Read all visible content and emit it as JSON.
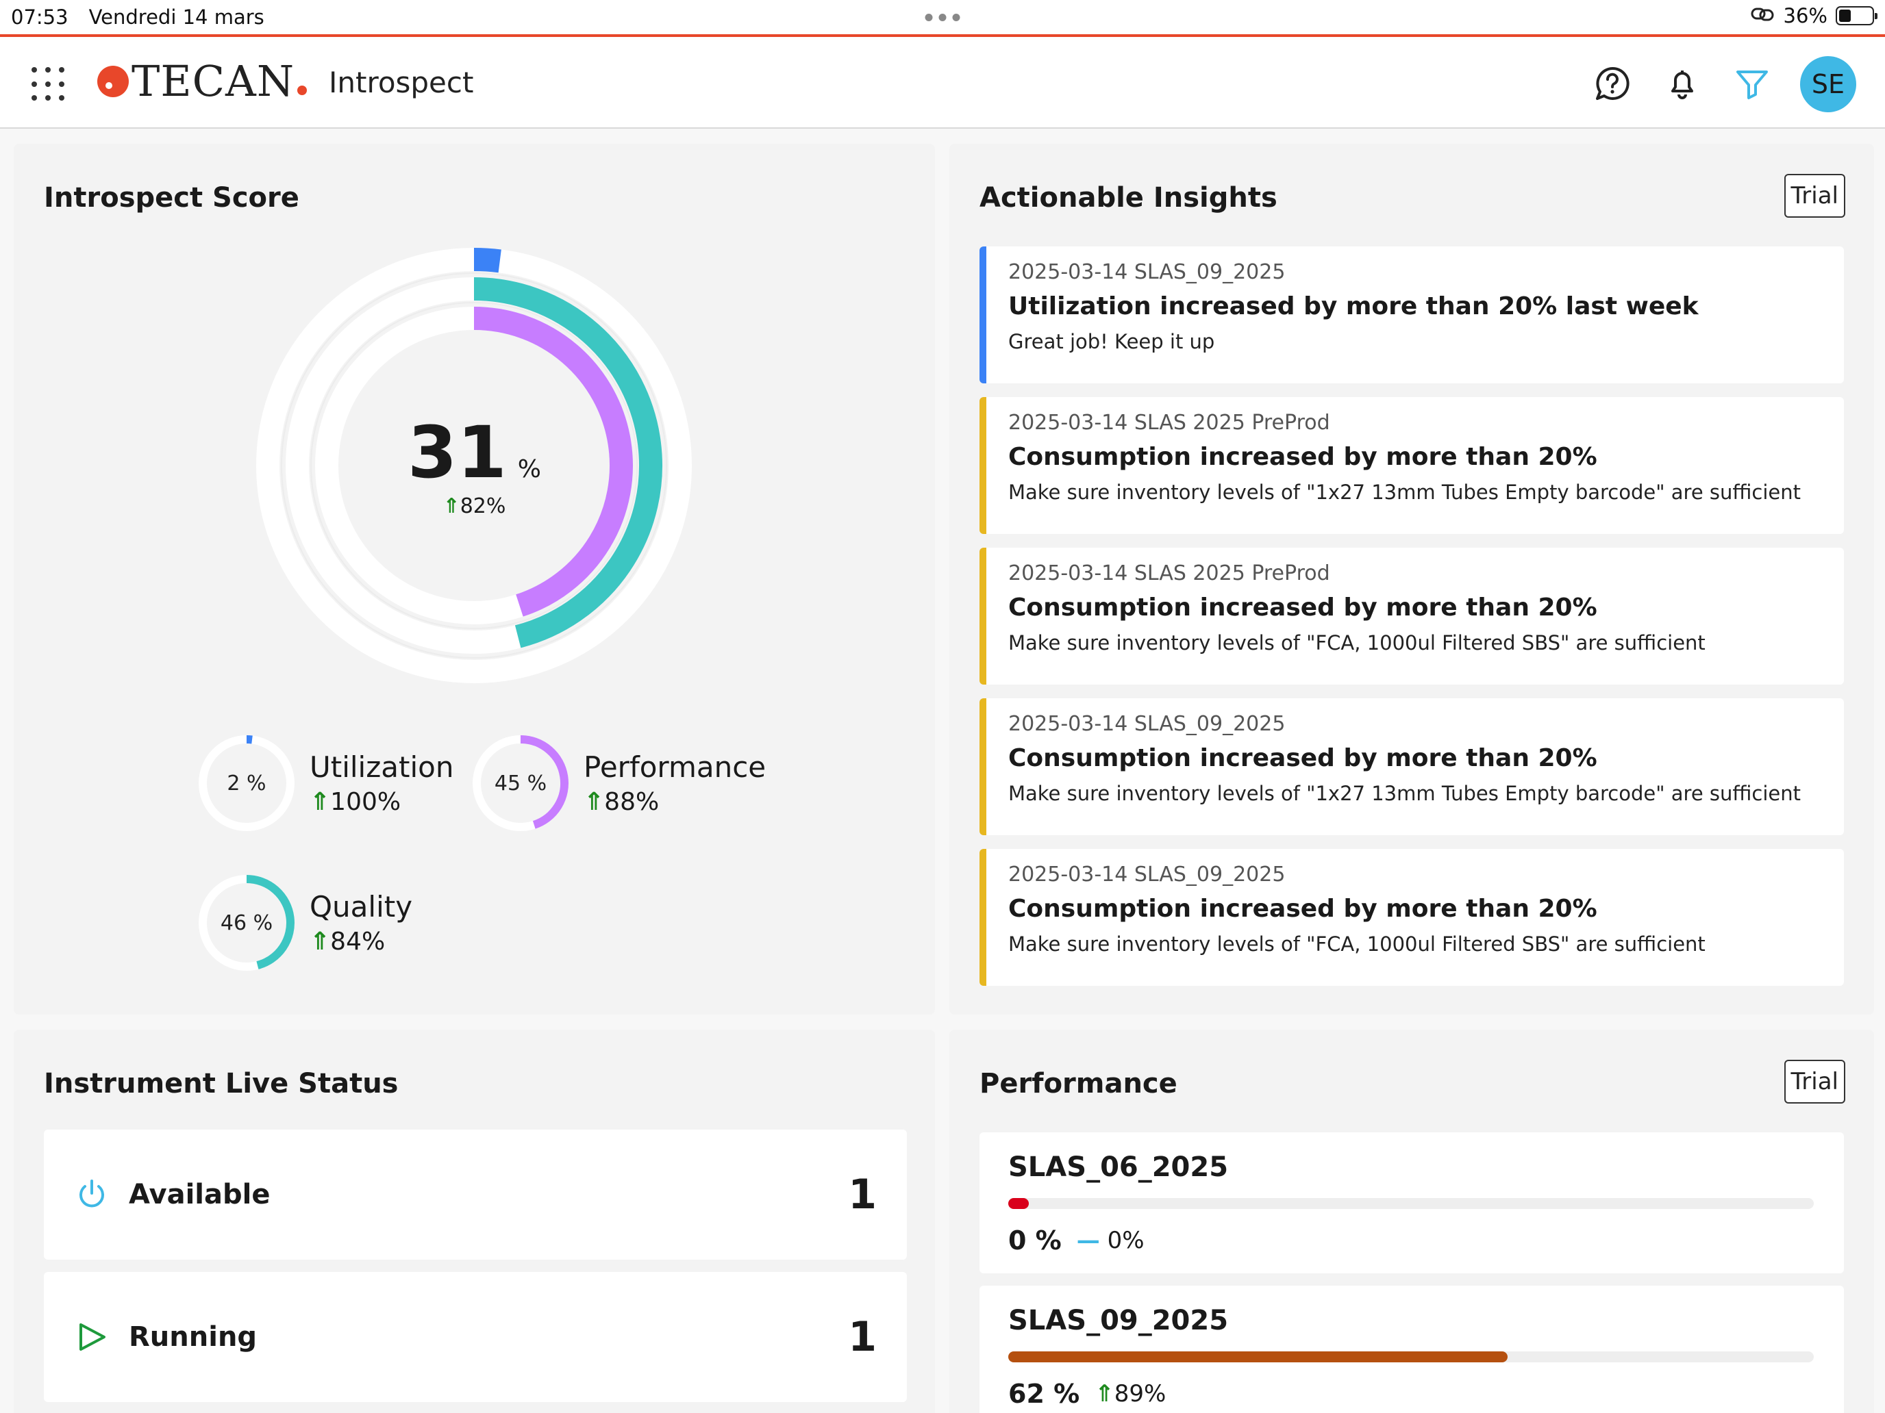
{
  "status_bar": {
    "time": "07:53",
    "date": "Vendredi 14 mars",
    "battery": "36%",
    "battery_level": 0.36
  },
  "header": {
    "brand": "TECAN",
    "product": "Introspect",
    "avatar_initials": "SE",
    "icons": [
      "apps-grid-icon",
      "help-chat-icon",
      "bell-icon",
      "filter-icon"
    ]
  },
  "score_card": {
    "title": "Introspect Score",
    "score": "31",
    "score_unit": "%",
    "score_change": "82%",
    "rings": {
      "utilization": 0.02,
      "quality": 0.46,
      "performance": 0.45
    },
    "colors": {
      "utilization": "#3b82f6",
      "quality": "#3cc6c2",
      "performance": "#c77dff"
    },
    "metrics": [
      {
        "key": "utilization",
        "value": "2 %",
        "label": "Utilization",
        "change": "100%"
      },
      {
        "key": "performance",
        "value": "45 %",
        "label": "Performance",
        "change": "88%"
      },
      {
        "key": "quality",
        "value": "46 %",
        "label": "Quality",
        "change": "84%"
      }
    ]
  },
  "insights": {
    "title": "Actionable Insights",
    "badge": "Trial",
    "items": [
      {
        "meta": "2025-03-14 SLAS_09_2025",
        "title": "Utilization increased by more than 20% last week",
        "desc": "Great job! Keep it up",
        "color": "#3b82f6"
      },
      {
        "meta": "2025-03-14 SLAS 2025 PreProd",
        "title": "Consumption increased by more than 20%",
        "desc": "Make sure inventory levels of \"1x27 13mm Tubes Empty barcode\" are sufficient",
        "color": "#e7b720"
      },
      {
        "meta": "2025-03-14 SLAS 2025 PreProd",
        "title": "Consumption increased by more than 20%",
        "desc": "Make sure inventory levels of \"FCA, 1000ul Filtered SBS\" are sufficient",
        "color": "#e7b720"
      },
      {
        "meta": "2025-03-14 SLAS_09_2025",
        "title": "Consumption increased by more than 20%",
        "desc": "Make sure inventory levels of \"1x27 13mm Tubes Empty barcode\" are sufficient",
        "color": "#e7b720"
      },
      {
        "meta": "2025-03-14 SLAS_09_2025",
        "title": "Consumption increased by more than 20%",
        "desc": "Make sure inventory levels of \"FCA, 1000ul Filtered SBS\" are sufficient",
        "color": "#e7b720"
      }
    ]
  },
  "live_status": {
    "title": "Instrument Live Status",
    "rows": [
      {
        "label": "Available",
        "count": "1",
        "icon": "power-icon"
      },
      {
        "label": "Running",
        "count": "1",
        "icon": "play-icon"
      }
    ]
  },
  "performance": {
    "title": "Performance",
    "badge": "Trial",
    "items": [
      {
        "name": "SLAS_06_2025",
        "value": "0 %",
        "change": "0%",
        "trend": "flat",
        "level": 0.0,
        "color": "#d9001b"
      },
      {
        "name": "SLAS_09_2025",
        "value": "62 %",
        "change": "89%",
        "trend": "up",
        "level": 0.62,
        "color": "#b5500f"
      }
    ]
  }
}
